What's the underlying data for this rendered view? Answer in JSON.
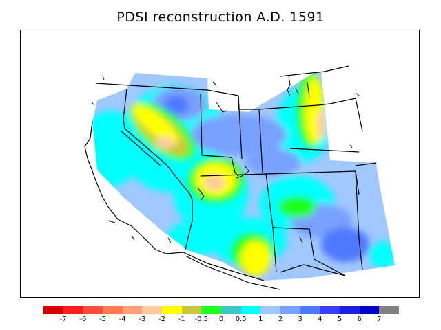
{
  "title": "PDSI reconstruction A.D. 1591",
  "colorbar": {
    "colors": [
      "#d40000",
      "#ff1e1e",
      "#ff4b3c",
      "#ff7850",
      "#ffa078",
      "#ffc8a0",
      "#ffff00",
      "#c8c83c",
      "#1eff1e",
      "#3cc8c8",
      "#00ffff",
      "#a0c8ff",
      "#78a0ff",
      "#5078ff",
      "#3c3cff",
      "#1e1ee6",
      "#0000c8",
      "#808080"
    ],
    "labels": [
      "-7",
      "-6",
      "-5",
      "-4",
      "-3",
      "-2",
      "-1",
      "-0.5",
      "0",
      "0.5",
      "1",
      "2",
      "3",
      "4",
      "5",
      "6",
      "7"
    ]
  }
}
